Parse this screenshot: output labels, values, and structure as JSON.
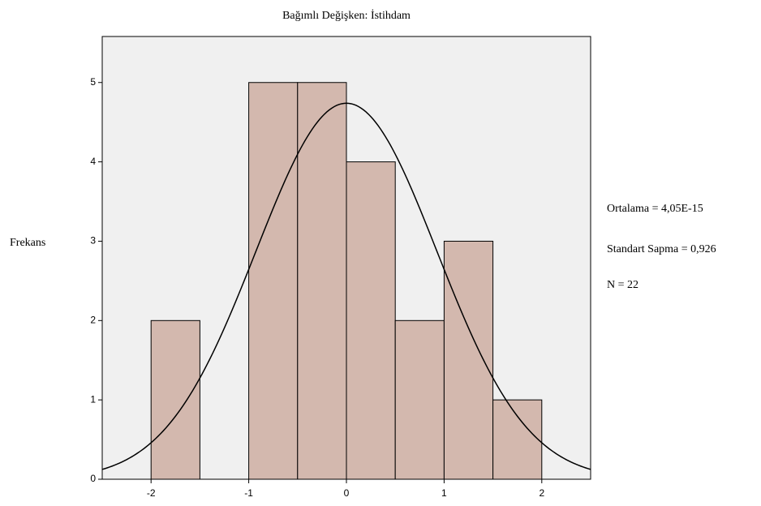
{
  "chart_data": {
    "type": "histogram",
    "title": "Bağımlı Değişken: İstihdam",
    "ylabel": "Frekans",
    "bins": [
      -2,
      -1.5,
      -1,
      -0.5,
      0,
      0.5,
      1,
      1.5,
      2
    ],
    "counts": [
      2,
      0,
      5,
      5,
      4,
      2,
      3,
      1
    ],
    "color": "#d3b8ae",
    "xlim": [
      -2.5,
      2.5
    ],
    "xticks": [
      -2,
      -1,
      0,
      1,
      2
    ],
    "ylim": [
      0,
      5.58
    ],
    "yticks": [
      0,
      1,
      2,
      3,
      4,
      5
    ],
    "stats": [
      {
        "value": 4.05e-15,
        "label": "Ortalama = 4,05E-15"
      },
      {
        "value": 0.926,
        "label": "Standart Sapma = 0,926"
      },
      {
        "value": 22,
        "label": "N = 22"
      }
    ],
    "normal_curve": true
  }
}
